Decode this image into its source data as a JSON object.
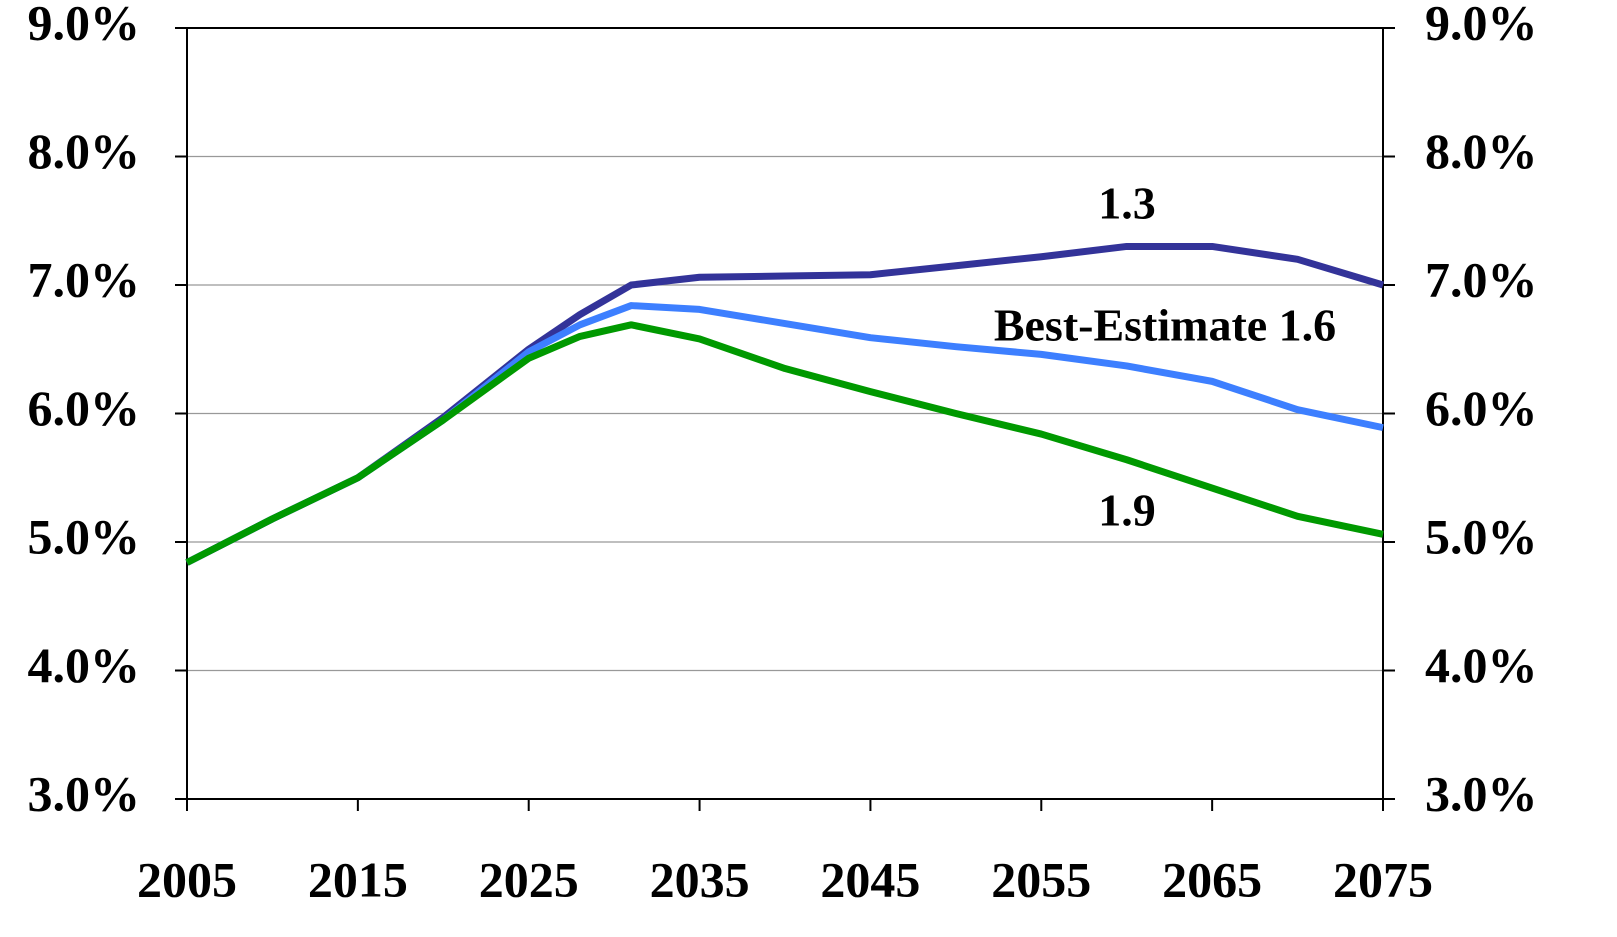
{
  "chart_data": {
    "type": "line",
    "x": [
      2005,
      2010,
      2015,
      2020,
      2025,
      2028,
      2031,
      2035,
      2040,
      2045,
      2050,
      2055,
      2060,
      2065,
      2070,
      2075
    ],
    "series": [
      {
        "name": "1.3",
        "color": "#333399",
        "values": [
          4.84,
          5.18,
          5.5,
          5.97,
          6.5,
          6.77,
          7.0,
          7.06,
          7.07,
          7.08,
          7.15,
          7.22,
          7.3,
          7.3,
          7.2,
          7.0
        ]
      },
      {
        "name": "Best-Estimate 1.6",
        "color": "#3d7fff",
        "values": [
          4.84,
          5.18,
          5.5,
          5.95,
          6.48,
          6.69,
          6.84,
          6.81,
          6.7,
          6.59,
          6.52,
          6.46,
          6.37,
          6.25,
          6.03,
          5.89
        ]
      },
      {
        "name": "1.9",
        "color": "#009900",
        "values": [
          4.84,
          5.18,
          5.5,
          5.95,
          6.43,
          6.6,
          6.69,
          6.58,
          6.35,
          6.17,
          6.0,
          5.84,
          5.64,
          5.42,
          5.2,
          5.06
        ]
      }
    ],
    "xlim": [
      2005,
      2075
    ],
    "xticks": [
      2005,
      2015,
      2025,
      2035,
      2045,
      2055,
      2065,
      2075
    ],
    "ylim": [
      3,
      9
    ],
    "yticks": [
      {
        "value": 3,
        "label": "3.0%"
      },
      {
        "value": 4,
        "label": "4.0%"
      },
      {
        "value": 5,
        "label": "5.0%"
      },
      {
        "value": 6,
        "label": "6.0%"
      },
      {
        "value": 7,
        "label": "7.0%"
      },
      {
        "value": 8,
        "label": "8.0%"
      },
      {
        "value": 9,
        "label": "9.0%"
      }
    ],
    "y2lim": [
      3,
      9
    ],
    "y2ticks": [
      {
        "value": 3,
        "label": "3.0%"
      },
      {
        "value": 4,
        "label": "4.0%"
      },
      {
        "value": 5,
        "label": "5.0%"
      },
      {
        "value": 6,
        "label": "6.0%"
      },
      {
        "value": 7,
        "label": "7.0%"
      },
      {
        "value": 8,
        "label": "8.0%"
      },
      {
        "value": 9,
        "label": "9.0%"
      }
    ],
    "grid": true
  }
}
